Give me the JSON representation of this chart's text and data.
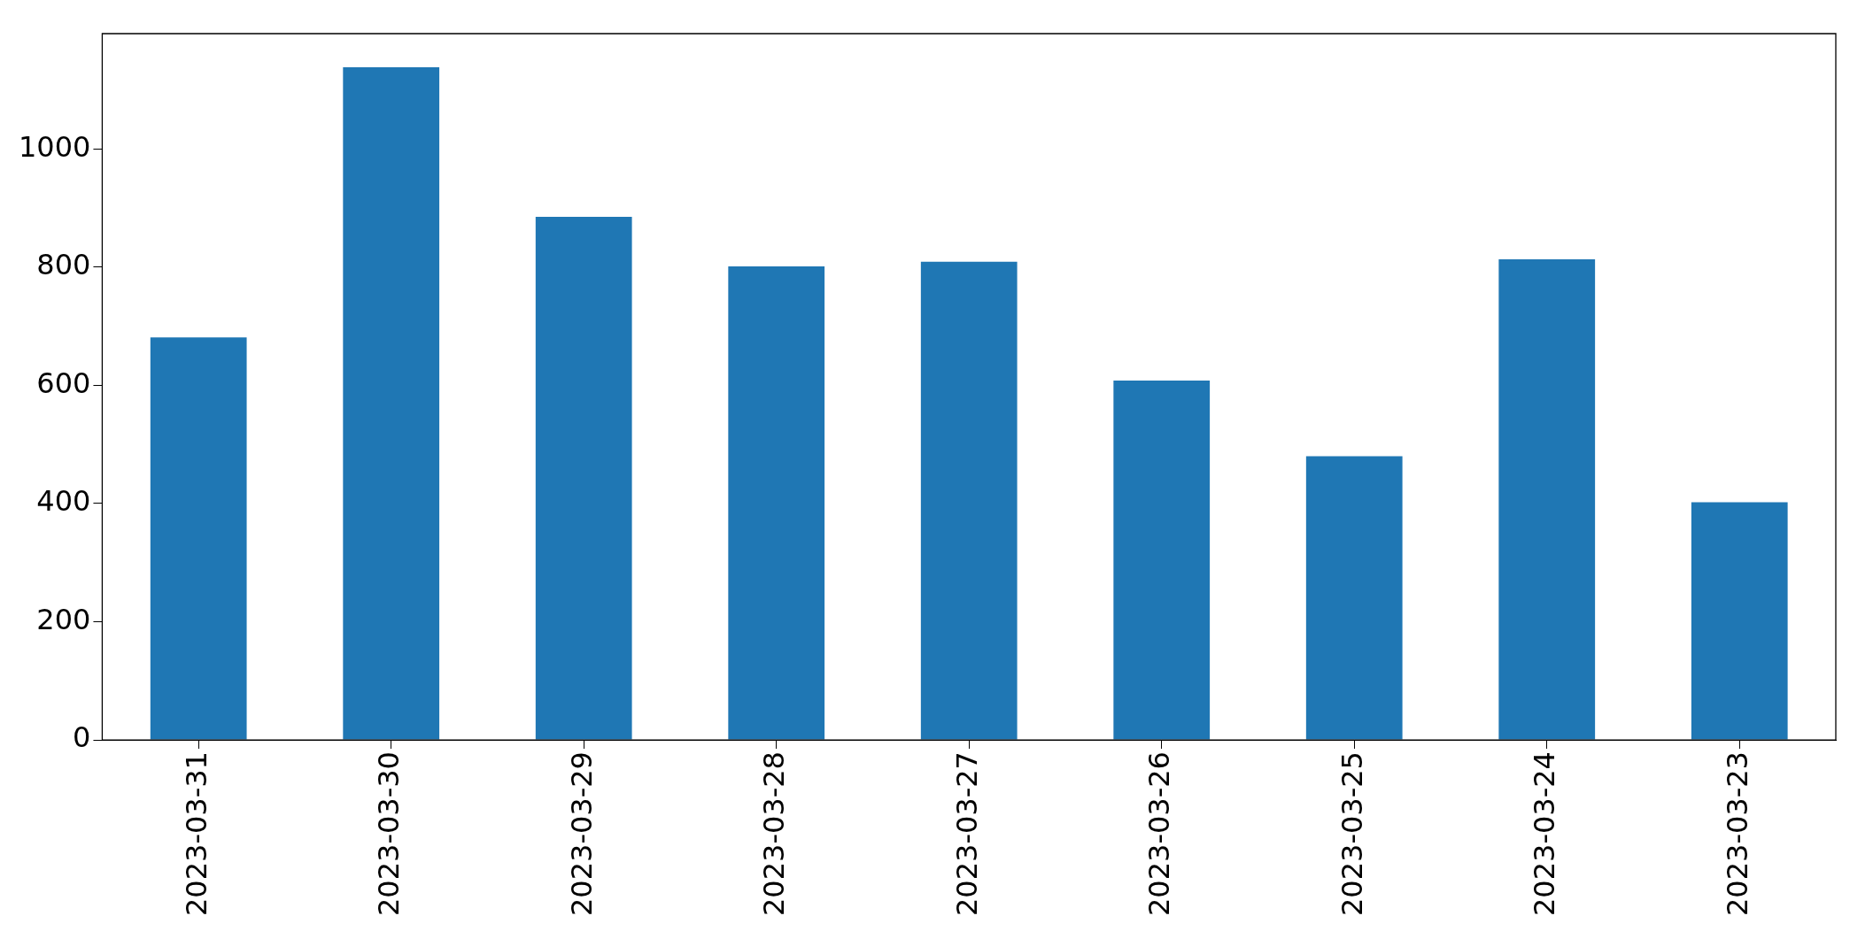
{
  "chart_data": {
    "type": "bar",
    "categories": [
      "2023-03-31",
      "2023-03-30",
      "2023-03-29",
      "2023-03-28",
      "2023-03-27",
      "2023-03-26",
      "2023-03-25",
      "2023-03-24",
      "2023-03-23"
    ],
    "values": [
      681,
      1138,
      885,
      801,
      809,
      608,
      480,
      813,
      402
    ],
    "color": "#1f77b4",
    "ylim": [
      0,
      1195
    ],
    "yticks": [
      0,
      200,
      400,
      600,
      800,
      1000
    ],
    "grid": false,
    "legend": false
  }
}
